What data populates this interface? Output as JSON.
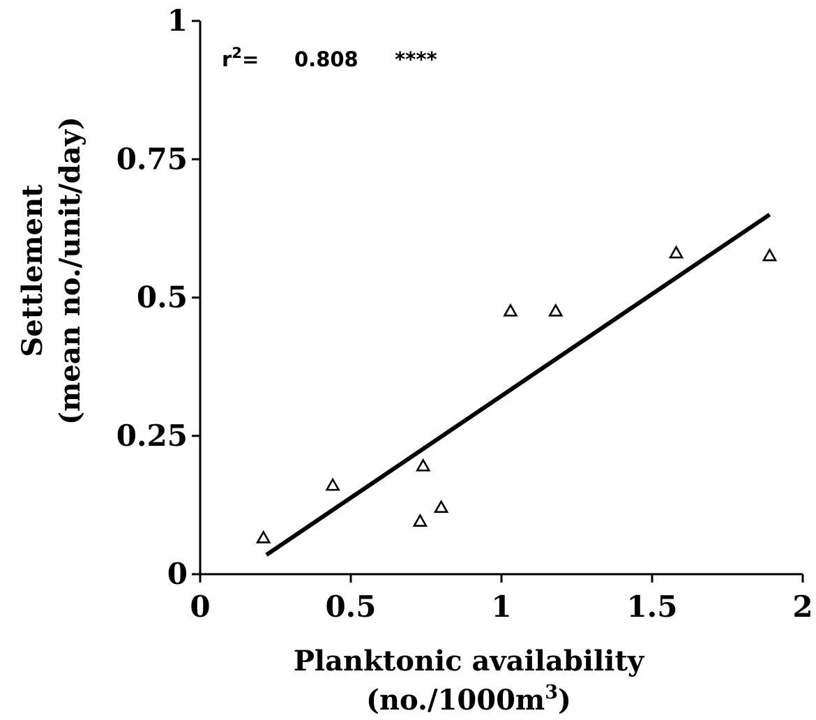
{
  "chart_data": {
    "type": "scatter",
    "xlabel": "Planktonic availability",
    "xlabel_units_prefix": "(no./1000m",
    "xlabel_units_exp": "3",
    "xlabel_units_suffix": ")",
    "ylabel": "Settlement",
    "ylabel_units": "(mean no./unit/day)",
    "xlim": [
      0,
      2
    ],
    "ylim": [
      0,
      1
    ],
    "x_ticks": [
      "0",
      "0.5",
      "1",
      "1.5",
      "2"
    ],
    "x_tick_values": [
      0,
      0.5,
      1,
      1.5,
      2
    ],
    "y_ticks": [
      "0",
      "0.25",
      "0.5",
      "0.75",
      "1"
    ],
    "y_tick_values": [
      0,
      0.25,
      0.5,
      0.75,
      1
    ],
    "grid": false,
    "annotation": {
      "r_label": "r",
      "r_exp": "2",
      "equals": "=",
      "value": "0.808",
      "significance": "****"
    },
    "series": [
      {
        "marker": "triangle-open",
        "points": [
          {
            "x": 0.21,
            "y": 0.065
          },
          {
            "x": 0.44,
            "y": 0.16
          },
          {
            "x": 0.73,
            "y": 0.095
          },
          {
            "x": 0.74,
            "y": 0.195
          },
          {
            "x": 0.8,
            "y": 0.12
          },
          {
            "x": 1.03,
            "y": 0.475
          },
          {
            "x": 1.18,
            "y": 0.475
          },
          {
            "x": 1.58,
            "y": 0.58
          },
          {
            "x": 1.89,
            "y": 0.575
          }
        ]
      }
    ],
    "fit_line": {
      "x1": 0.22,
      "y1": 0.035,
      "x2": 1.89,
      "y2": 0.65
    },
    "colors": {
      "ink": "#000000",
      "background": "#ffffff"
    }
  }
}
